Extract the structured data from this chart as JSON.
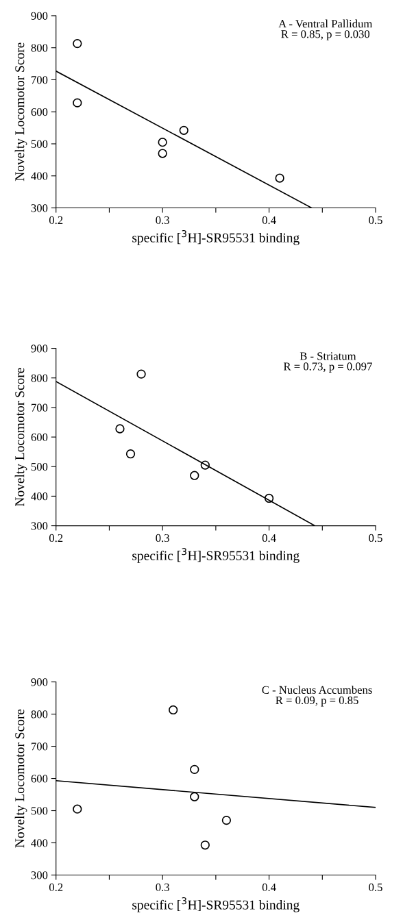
{
  "chart_data": [
    {
      "type": "scatter",
      "xlabel": "specific [$^{3}$H]-SR95531 binding",
      "ylabel": "Novelty Locomotor Score",
      "annotations": [
        "A - Ventral Pallidum",
        "R = 0.85, p = 0.030"
      ],
      "xlim": [
        0.2,
        0.5
      ],
      "ylim": [
        300,
        900
      ],
      "xticks": [
        0.2,
        {
          "value": 0.25,
          "label": null
        },
        0.3,
        {
          "value": 0.35,
          "label": null
        },
        0.4,
        {
          "value": 0.45,
          "label": null
        },
        0.5
      ],
      "yticks": [
        300,
        400,
        500,
        600,
        700,
        800,
        900
      ],
      "grid": false,
      "legend": false,
      "series": [
        {
          "color": "#000000",
          "marker": "circle",
          "x": [
            0.22,
            0.22,
            0.3,
            0.3,
            0.32,
            0.41
          ],
          "values": [
            813,
            628,
            505,
            470,
            542,
            393
          ]
        },
        {
          "type": "line",
          "marker": "none",
          "color": "#000000",
          "x": [
            0.2,
            0.44
          ],
          "values": [
            727,
            300
          ]
        }
      ]
    },
    {
      "type": "scatter",
      "xlabel": "specific [$^{3}$H]-SR95531 binding",
      "ylabel": "Novelty Locomotor Score",
      "annotations": [
        "B - Striatum",
        "R = 0.73, p = 0.097"
      ],
      "xlim": [
        0.2,
        0.5
      ],
      "ylim": [
        300,
        900
      ],
      "xticks": [
        0.2,
        {
          "value": 0.25,
          "label": null
        },
        0.3,
        {
          "value": 0.35,
          "label": null
        },
        0.4,
        {
          "value": 0.45,
          "label": null
        },
        0.5
      ],
      "yticks": [
        300,
        400,
        500,
        600,
        700,
        800,
        900
      ],
      "grid": false,
      "legend": false,
      "series": [
        {
          "color": "#000000",
          "marker": "circle",
          "x": [
            0.26,
            0.27,
            0.28,
            0.33,
            0.34,
            0.4
          ],
          "values": [
            628,
            543,
            813,
            470,
            505,
            393
          ]
        },
        {
          "type": "line",
          "marker": "none",
          "color": "#000000",
          "x": [
            0.2,
            0.443
          ],
          "values": [
            788,
            300
          ]
        }
      ]
    },
    {
      "type": "scatter",
      "xlabel": "specific [$^{3}$H]-SR95531 binding",
      "ylabel": "Novelty Locomotor Score",
      "annotations": [
        "C - Nucleus Accumbens",
        "R = 0.09, p = 0.85"
      ],
      "xlim": [
        0.2,
        0.5
      ],
      "ylim": [
        300,
        900
      ],
      "xticks": [
        0.2,
        {
          "value": 0.25,
          "label": null
        },
        0.3,
        {
          "value": 0.35,
          "label": null
        },
        0.4,
        {
          "value": 0.45,
          "label": null
        },
        0.5
      ],
      "yticks": [
        300,
        400,
        500,
        600,
        700,
        800,
        900
      ],
      "grid": false,
      "legend": false,
      "series": [
        {
          "color": "#000000",
          "marker": "circle",
          "x": [
            0.22,
            0.31,
            0.33,
            0.33,
            0.34,
            0.36
          ],
          "values": [
            505,
            813,
            628,
            543,
            393,
            470
          ]
        },
        {
          "type": "line",
          "marker": "none",
          "color": "#000000",
          "x": [
            0.2,
            0.5
          ],
          "values": [
            593,
            510
          ]
        }
      ]
    }
  ]
}
